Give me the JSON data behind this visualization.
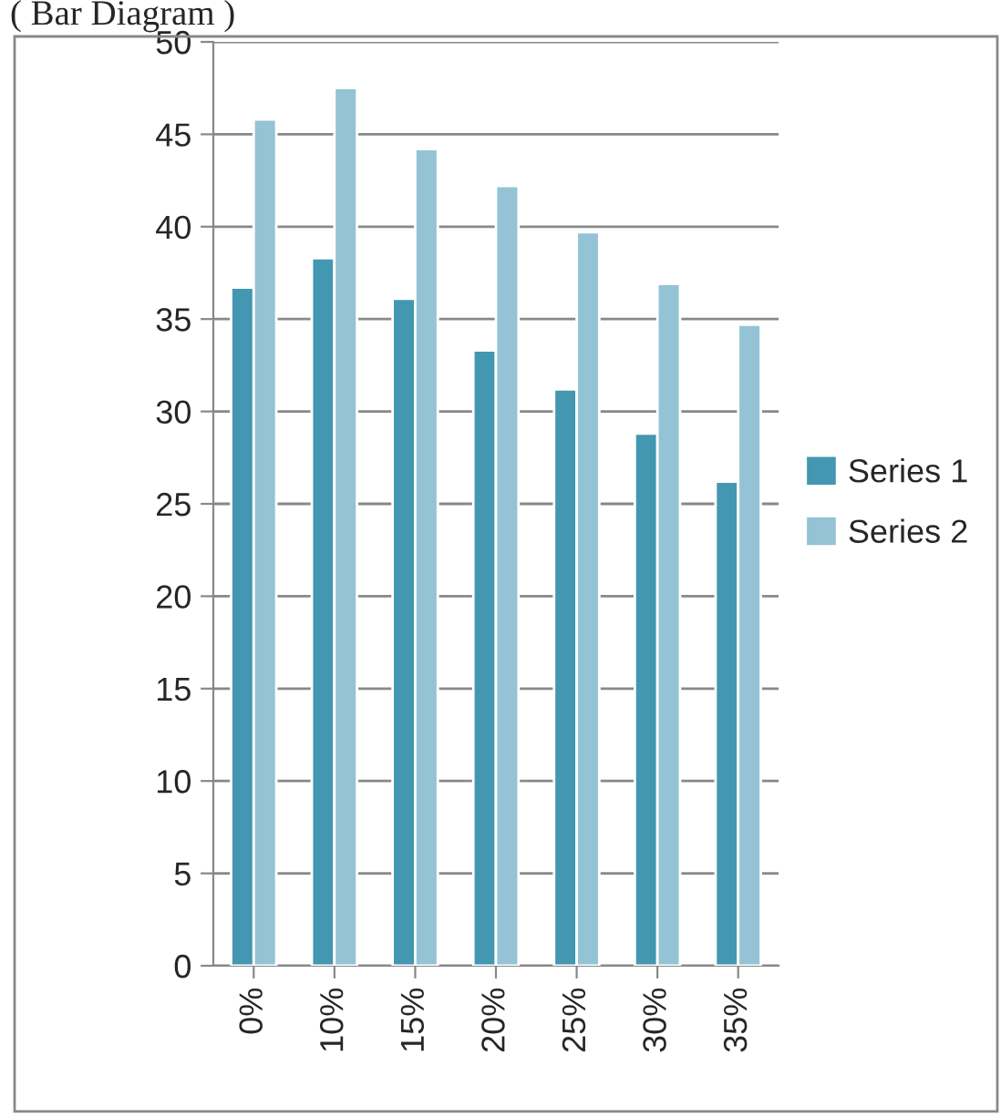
{
  "chart_data": {
    "type": "bar",
    "title": "( Bar Diagram )",
    "categories": [
      "0%",
      "10%",
      "15%",
      "20%",
      "25%",
      "30%",
      "35%"
    ],
    "series": [
      {
        "name": "Series 1",
        "color": "#4397b0",
        "values": [
          36.7,
          38.3,
          36.1,
          33.3,
          31.2,
          28.8,
          26.2
        ]
      },
      {
        "name": "Series 2",
        "color": "#93c3d5",
        "values": [
          45.8,
          47.5,
          44.2,
          42.2,
          39.7,
          36.9,
          34.7
        ]
      }
    ],
    "ylim": [
      0,
      50
    ],
    "yticks": [
      0,
      5,
      10,
      15,
      20,
      25,
      30,
      35,
      40,
      45,
      50
    ],
    "grid": "y",
    "legend": "right"
  }
}
